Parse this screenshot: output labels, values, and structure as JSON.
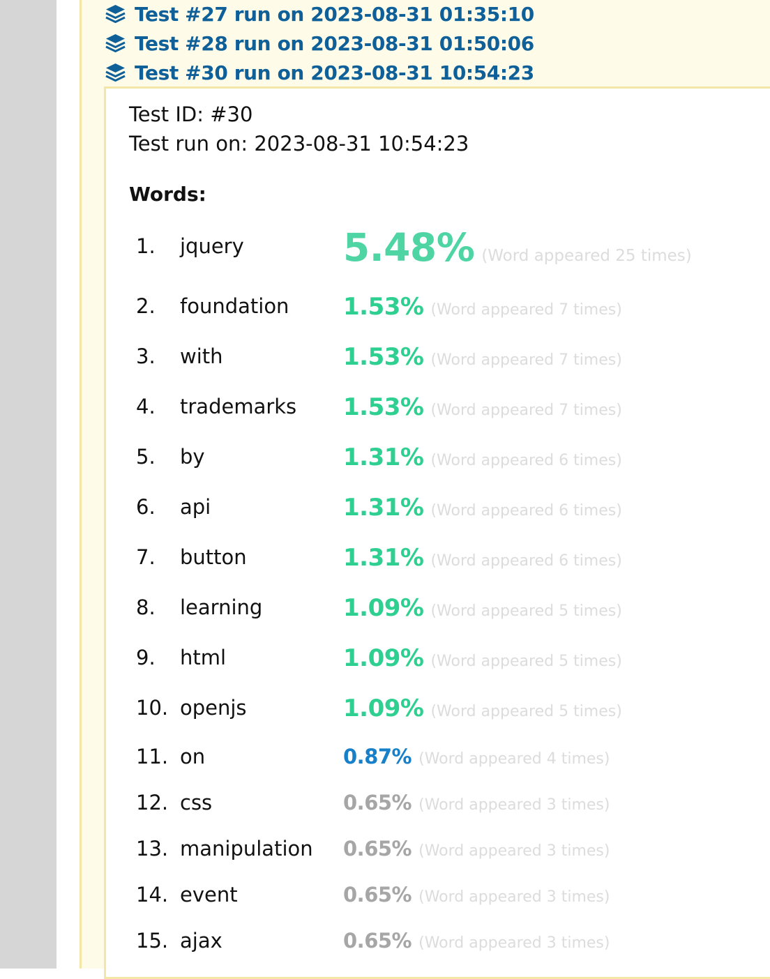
{
  "tests": [
    {
      "label": "Test #27 run on 2023-08-31 01:35:10",
      "icon": "stack-icon"
    },
    {
      "label": "Test #28 run on 2023-08-31 01:50:06",
      "icon": "stack-icon"
    },
    {
      "label": "Test #30 run on 2023-08-31 10:54:23",
      "icon": "stack-icon"
    }
  ],
  "detail": {
    "test_id": "Test ID: #30",
    "run_on": "Test run on: 2023-08-31 10:54:23",
    "words_heading": "Words:"
  },
  "words": [
    {
      "rank": "1.",
      "word": "jquery",
      "percent": "5.48%",
      "count": "(Word appeared 25 times)"
    },
    {
      "rank": "2.",
      "word": "foundation",
      "percent": "1.53%",
      "count": "(Word appeared 7 times)"
    },
    {
      "rank": "3.",
      "word": "with",
      "percent": "1.53%",
      "count": "(Word appeared 7 times)"
    },
    {
      "rank": "4.",
      "word": "trademarks",
      "percent": "1.53%",
      "count": "(Word appeared 7 times)"
    },
    {
      "rank": "5.",
      "word": "by",
      "percent": "1.31%",
      "count": "(Word appeared 6 times)"
    },
    {
      "rank": "6.",
      "word": "api",
      "percent": "1.31%",
      "count": "(Word appeared 6 times)"
    },
    {
      "rank": "7.",
      "word": "button",
      "percent": "1.31%",
      "count": "(Word appeared 6 times)"
    },
    {
      "rank": "8.",
      "word": "learning",
      "percent": "1.09%",
      "count": "(Word appeared 5 times)"
    },
    {
      "rank": "9.",
      "word": "html",
      "percent": "1.09%",
      "count": "(Word appeared 5 times)"
    },
    {
      "rank": "10.",
      "word": "openjs",
      "percent": "1.09%",
      "count": "(Word appeared 5 times)"
    },
    {
      "rank": "11.",
      "word": "on",
      "percent": "0.87%",
      "count": "(Word appeared 4 times)"
    },
    {
      "rank": "12.",
      "word": "css",
      "percent": "0.65%",
      "count": "(Word appeared 3 times)"
    },
    {
      "rank": "13.",
      "word": "manipulation",
      "percent": "0.65%",
      "count": "(Word appeared 3 times)"
    },
    {
      "rank": "14.",
      "word": "event",
      "percent": "0.65%",
      "count": "(Word appeared 3 times)"
    },
    {
      "rank": "15.",
      "word": "ajax",
      "percent": "0.65%",
      "count": "(Word appeared 3 times)"
    }
  ],
  "colors": {
    "link": "#0f5f98",
    "percent_high": "#2ecf90",
    "percent_top": "#4fd4a4",
    "percent_mid": "#1780c8",
    "percent_low": "#a6a6a6",
    "panel_bg": "#fefce8",
    "panel_border": "#f4e6a6"
  }
}
